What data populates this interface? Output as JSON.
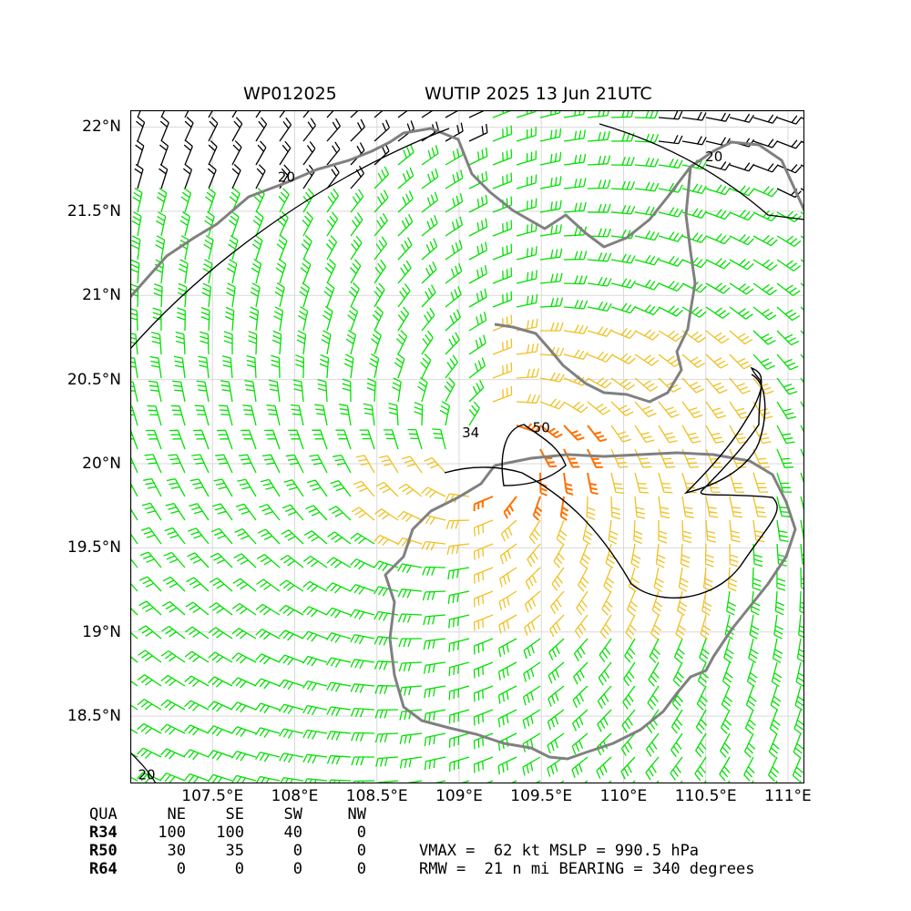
{
  "title": {
    "storm_id": "WP012025",
    "storm_time": "WUTIP 2025 13 Jun 21UTC"
  },
  "map": {
    "lon_range": [
      107.0,
      111.1
    ],
    "lat_range": [
      18.1,
      22.1
    ],
    "lat_labels": [
      {
        "value": 22.0,
        "text": "22°N"
      },
      {
        "value": 21.5,
        "text": "21.5°N"
      },
      {
        "value": 21.0,
        "text": "21°N"
      },
      {
        "value": 20.5,
        "text": "20.5°N"
      },
      {
        "value": 20.0,
        "text": "20°N"
      },
      {
        "value": 19.5,
        "text": "19.5°N"
      },
      {
        "value": 19.0,
        "text": "19°N"
      },
      {
        "value": 18.5,
        "text": "18.5°N"
      }
    ],
    "lon_labels": [
      {
        "value": 107.5,
        "text": "107.5°E"
      },
      {
        "value": 108.0,
        "text": "108°E"
      },
      {
        "value": 108.5,
        "text": "108.5°E"
      },
      {
        "value": 109.0,
        "text": "109°E"
      },
      {
        "value": 109.5,
        "text": "109.5°E"
      },
      {
        "value": 110.0,
        "text": "110°E"
      },
      {
        "value": 110.5,
        "text": "110.5°E"
      },
      {
        "value": 111.0,
        "text": "111°E"
      }
    ],
    "storm_center": {
      "lon": 109.2,
      "lat": 20.05
    },
    "colors": {
      "weak": "#000000",
      "gale": "#00e000",
      "storm": "#f0c020",
      "severe": "#ff7000",
      "coast": "#808080",
      "grid": "#d9d9d9"
    },
    "contour_labels": [
      {
        "text": "20",
        "lon": 107.95,
        "lat": 21.7
      },
      {
        "text": "20",
        "lon": 110.55,
        "lat": 21.82
      },
      {
        "text": "20",
        "lon": 107.1,
        "lat": 18.15
      },
      {
        "text": "34",
        "lon": 109.07,
        "lat": 20.18
      },
      {
        "text": "50",
        "lon": 109.5,
        "lat": 20.21
      }
    ]
  },
  "quadrants": {
    "header": [
      "QUA",
      "NE",
      "SE",
      "SW",
      "NW"
    ],
    "rows": [
      [
        "R34",
        "100",
        "100",
        "40",
        "0"
      ],
      [
        "R50",
        "30",
        "35",
        "0",
        "0"
      ],
      [
        "R64",
        "0",
        "0",
        "0",
        "0"
      ]
    ]
  },
  "stats": {
    "line1": "VMAX =  62 kt MSLP = 990.5 hPa",
    "line2": "RMW =  21 n mi BEARING = 340 degrees"
  }
}
